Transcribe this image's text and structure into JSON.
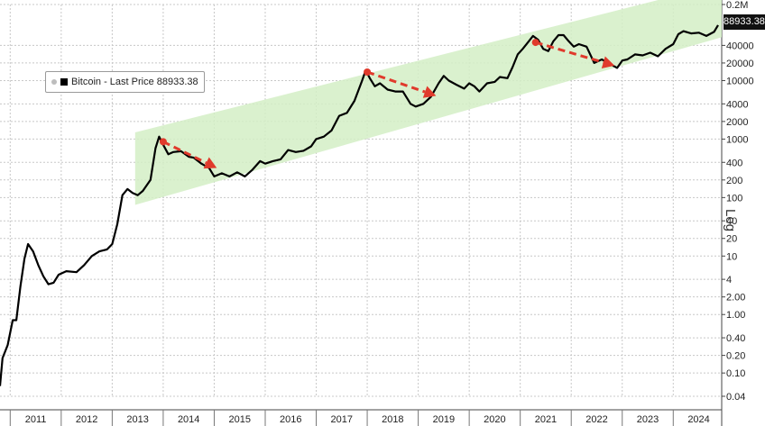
{
  "chart_data": {
    "type": "line",
    "scale": "log",
    "title": "",
    "scale_label": "Log",
    "grid": true,
    "legend": {
      "text": "Bitcoin - Last Price 88933.38",
      "position": "top-left"
    },
    "last_price_label": "88933.38",
    "x_labels": [
      "2011",
      "2012",
      "2013",
      "2014",
      "2015",
      "2016",
      "2017",
      "2018",
      "2019",
      "2020",
      "2021",
      "2022",
      "2023",
      "2024"
    ],
    "xlim": [
      2010.8,
      2024.95
    ],
    "y_ticks": [
      {
        "value": 0.04,
        "label": "0.04"
      },
      {
        "value": 0.1,
        "label": "0.10"
      },
      {
        "value": 0.2,
        "label": "0.20"
      },
      {
        "value": 0.4,
        "label": "0.40"
      },
      {
        "value": 1,
        "label": "1.00"
      },
      {
        "value": 2,
        "label": "2.00"
      },
      {
        "value": 4,
        "label": "4"
      },
      {
        "value": 10,
        "label": "10"
      },
      {
        "value": 20,
        "label": "20"
      },
      {
        "value": 40,
        "label": "40"
      },
      {
        "value": 100,
        "label": "100"
      },
      {
        "value": 200,
        "label": "200"
      },
      {
        "value": 400,
        "label": "400"
      },
      {
        "value": 1000,
        "label": "1000"
      },
      {
        "value": 2000,
        "label": "2000"
      },
      {
        "value": 4000,
        "label": "4000"
      },
      {
        "value": 10000,
        "label": "10000"
      },
      {
        "value": 20000,
        "label": "20000"
      },
      {
        "value": 40000,
        "label": "40000"
      },
      {
        "value": 200000,
        "label": "0.2M"
      }
    ],
    "ylim": [
      0.04,
      200000
    ],
    "series": [
      {
        "name": "Bitcoin - Last Price",
        "color": "#000000",
        "points": [
          [
            2010.8,
            0.06
          ],
          [
            2010.85,
            0.18
          ],
          [
            2010.95,
            0.3
          ],
          [
            2011.05,
            0.8
          ],
          [
            2011.12,
            0.8
          ],
          [
            2011.2,
            3
          ],
          [
            2011.28,
            9
          ],
          [
            2011.35,
            16
          ],
          [
            2011.45,
            12
          ],
          [
            2011.55,
            7
          ],
          [
            2011.65,
            4.5
          ],
          [
            2011.75,
            3.3
          ],
          [
            2011.85,
            3.5
          ],
          [
            2011.95,
            4.8
          ],
          [
            2012.1,
            5.5
          ],
          [
            2012.3,
            5.3
          ],
          [
            2012.45,
            7
          ],
          [
            2012.6,
            10
          ],
          [
            2012.75,
            12
          ],
          [
            2012.9,
            13
          ],
          [
            2013.0,
            16
          ],
          [
            2013.1,
            35
          ],
          [
            2013.2,
            110
          ],
          [
            2013.3,
            140
          ],
          [
            2013.4,
            120
          ],
          [
            2013.5,
            110
          ],
          [
            2013.6,
            130
          ],
          [
            2013.75,
            200
          ],
          [
            2013.85,
            700
          ],
          [
            2013.92,
            1100
          ],
          [
            2014.0,
            800
          ],
          [
            2014.1,
            550
          ],
          [
            2014.2,
            600
          ],
          [
            2014.35,
            620
          ],
          [
            2014.5,
            500
          ],
          [
            2014.6,
            480
          ],
          [
            2014.75,
            380
          ],
          [
            2014.9,
            320
          ],
          [
            2015.0,
            230
          ],
          [
            2015.15,
            260
          ],
          [
            2015.3,
            230
          ],
          [
            2015.45,
            270
          ],
          [
            2015.6,
            230
          ],
          [
            2015.75,
            300
          ],
          [
            2015.9,
            420
          ],
          [
            2016.0,
            380
          ],
          [
            2016.15,
            420
          ],
          [
            2016.3,
            450
          ],
          [
            2016.45,
            650
          ],
          [
            2016.6,
            600
          ],
          [
            2016.75,
            630
          ],
          [
            2016.9,
            750
          ],
          [
            2017.0,
            1000
          ],
          [
            2017.15,
            1100
          ],
          [
            2017.3,
            1400
          ],
          [
            2017.45,
            2500
          ],
          [
            2017.6,
            2800
          ],
          [
            2017.75,
            4500
          ],
          [
            2017.9,
            10000
          ],
          [
            2017.97,
            15000
          ],
          [
            2018.05,
            11000
          ],
          [
            2018.15,
            8000
          ],
          [
            2018.25,
            9000
          ],
          [
            2018.4,
            7000
          ],
          [
            2018.55,
            6500
          ],
          [
            2018.7,
            6500
          ],
          [
            2018.85,
            4000
          ],
          [
            2018.95,
            3600
          ],
          [
            2019.1,
            4000
          ],
          [
            2019.25,
            5300
          ],
          [
            2019.4,
            9000
          ],
          [
            2019.5,
            12000
          ],
          [
            2019.6,
            10000
          ],
          [
            2019.75,
            8500
          ],
          [
            2019.9,
            7300
          ],
          [
            2020.0,
            9000
          ],
          [
            2020.1,
            8000
          ],
          [
            2020.2,
            6500
          ],
          [
            2020.35,
            9000
          ],
          [
            2020.5,
            9500
          ],
          [
            2020.6,
            11500
          ],
          [
            2020.75,
            11000
          ],
          [
            2020.85,
            17000
          ],
          [
            2020.95,
            28000
          ],
          [
            2021.05,
            35000
          ],
          [
            2021.15,
            45000
          ],
          [
            2021.25,
            58000
          ],
          [
            2021.35,
            50000
          ],
          [
            2021.45,
            35000
          ],
          [
            2021.55,
            32000
          ],
          [
            2021.65,
            47000
          ],
          [
            2021.75,
            60000
          ],
          [
            2021.85,
            60000
          ],
          [
            2021.95,
            47000
          ],
          [
            2022.05,
            38000
          ],
          [
            2022.15,
            42000
          ],
          [
            2022.3,
            38000
          ],
          [
            2022.45,
            20000
          ],
          [
            2022.6,
            23000
          ],
          [
            2022.75,
            19500
          ],
          [
            2022.9,
            16500
          ],
          [
            2023.0,
            22000
          ],
          [
            2023.1,
            23000
          ],
          [
            2023.25,
            28000
          ],
          [
            2023.4,
            27000
          ],
          [
            2023.55,
            30000
          ],
          [
            2023.7,
            26000
          ],
          [
            2023.85,
            35000
          ],
          [
            2024.0,
            42000
          ],
          [
            2024.1,
            62000
          ],
          [
            2024.2,
            70000
          ],
          [
            2024.35,
            64000
          ],
          [
            2024.5,
            66000
          ],
          [
            2024.65,
            58000
          ],
          [
            2024.8,
            68000
          ],
          [
            2024.88,
            88933.38
          ]
        ]
      }
    ],
    "annotations": {
      "channel_color": "#d4efc6",
      "channel": [
        {
          "x": 2013.45,
          "y_low": 75,
          "y_high": 1300
        },
        {
          "x": 2024.95,
          "y_low": 55000,
          "y_high": 450000
        }
      ],
      "arrow_color": "#e03a2c",
      "arrows": [
        {
          "from": [
            2014.0,
            900
          ],
          "to": [
            2015.05,
            320
          ]
        },
        {
          "from": [
            2018.0,
            14000
          ],
          "to": [
            2019.35,
            5500
          ]
        },
        {
          "from": [
            2021.3,
            45000
          ],
          "to": [
            2022.85,
            18000
          ]
        }
      ]
    }
  }
}
